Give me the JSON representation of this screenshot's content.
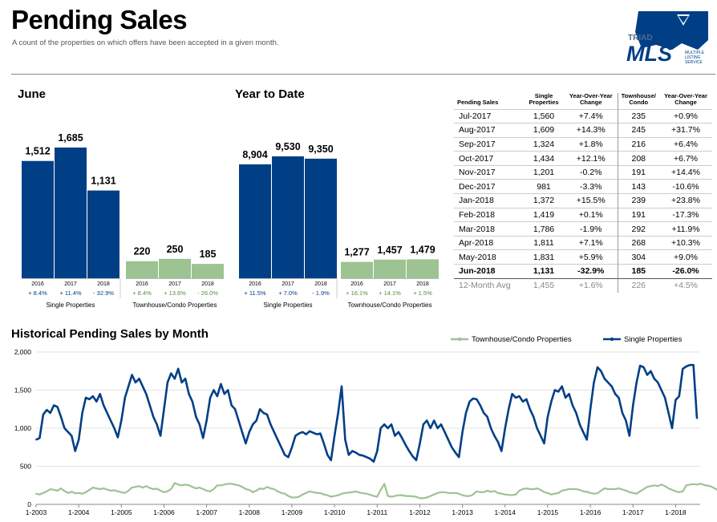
{
  "header": {
    "title": "Pending Sales",
    "subtitle": "A count of the properties on which offers have been accepted in a given month."
  },
  "logo": {
    "line1": "TRIAD",
    "line2": "MLS",
    "line3": "MULTIPLE",
    "line4": "LISTING",
    "line5": "SERVICE"
  },
  "colors": {
    "single": "#003f86",
    "townhouse": "#9dc393",
    "pct": "#003f86",
    "pct_green": "#4e8f3c"
  },
  "chart_data": [
    {
      "type": "bar",
      "title": "June",
      "groups": [
        {
          "name": "Single Properties",
          "categories": [
            "2016",
            "2017",
            "2018"
          ],
          "values": [
            1512,
            1685,
            1131
          ],
          "value_labels": [
            "1,512",
            "1,685",
            "1,131"
          ],
          "changes": [
            "+ 8.4%",
            "+ 11.4%",
            "- 32.9%"
          ]
        },
        {
          "name": "Townhouse/Condo Properties",
          "categories": [
            "2016",
            "2017",
            "2018"
          ],
          "values": [
            220,
            250,
            185
          ],
          "value_labels": [
            "220",
            "250",
            "185"
          ],
          "changes": [
            "+ 8.4%",
            "+ 13.6%",
            "- 26.0%"
          ]
        }
      ]
    },
    {
      "type": "bar",
      "title": "Year to Date",
      "groups": [
        {
          "name": "Single Properties",
          "categories": [
            "2016",
            "2017",
            "2018"
          ],
          "values": [
            8904,
            9530,
            9350
          ],
          "value_labels": [
            "8,904",
            "9,530",
            "9,350"
          ],
          "changes": [
            "+ 11.5%",
            "+ 7.0%",
            "- 1.9%"
          ]
        },
        {
          "name": "Townhouse/Condo Properties",
          "categories": [
            "2016",
            "2017",
            "2018"
          ],
          "values": [
            1277,
            1457,
            1479
          ],
          "value_labels": [
            "1,277",
            "1,457",
            "1,479"
          ],
          "changes": [
            "+ 16.1%",
            "+ 14.1%",
            "+ 1.5%"
          ]
        }
      ]
    },
    {
      "type": "table",
      "headers": [
        "Pending Sales",
        "Single Properties",
        "Year-Over-Year Change",
        "Townhouse/ Condo",
        "Year-Over-Year Change"
      ],
      "rows": [
        [
          "Jul-2017",
          "1,560",
          "+7.4%",
          "235",
          "+0.9%"
        ],
        [
          "Aug-2017",
          "1,609",
          "+14.3%",
          "245",
          "+31.7%"
        ],
        [
          "Sep-2017",
          "1,324",
          "+1.8%",
          "216",
          "+6.4%"
        ],
        [
          "Oct-2017",
          "1,434",
          "+12.1%",
          "208",
          "+6.7%"
        ],
        [
          "Nov-2017",
          "1,201",
          "-0.2%",
          "191",
          "+14.4%"
        ],
        [
          "Dec-2017",
          "981",
          "-3.3%",
          "143",
          "-10.6%"
        ],
        [
          "Jan-2018",
          "1,372",
          "+15.5%",
          "239",
          "+23.8%"
        ],
        [
          "Feb-2018",
          "1,419",
          "+0.1%",
          "191",
          "-17.3%"
        ],
        [
          "Mar-2018",
          "1,786",
          "-1.9%",
          "292",
          "+11.9%"
        ],
        [
          "Apr-2018",
          "1,811",
          "+7.1%",
          "268",
          "+10.3%"
        ],
        [
          "May-2018",
          "1,831",
          "+5.9%",
          "304",
          "+9.0%"
        ],
        [
          "Jun-2018",
          "1,131",
          "-32.9%",
          "185",
          "-26.0%"
        ]
      ],
      "avg_row": [
        "12-Month Avg",
        "1,455",
        "+1.6%",
        "226",
        "+4.5%"
      ]
    },
    {
      "type": "line",
      "title": "Historical Pending Sales by Month",
      "ylim": [
        0,
        2000
      ],
      "yticks": [
        "0",
        "500",
        "1,000",
        "1,500",
        "2,000"
      ],
      "xticks": [
        "1-2003",
        "1-2004",
        "1-2005",
        "1-2006",
        "1-2007",
        "1-2008",
        "1-2009",
        "1-2010",
        "1-2011",
        "1-2012",
        "1-2013",
        "1-2014",
        "1-2015",
        "1-2016",
        "1-2017",
        "1-2018"
      ],
      "x_start": "2003-01",
      "series": [
        {
          "name": "Townhouse/Condo Properties",
          "values": [
            140,
            130,
            150,
            170,
            200,
            190,
            180,
            210,
            175,
            150,
            165,
            145,
            150,
            140,
            160,
            190,
            220,
            210,
            200,
            210,
            195,
            180,
            185,
            170,
            160,
            150,
            180,
            220,
            230,
            240,
            220,
            240,
            215,
            200,
            205,
            180,
            160,
            170,
            200,
            280,
            260,
            250,
            260,
            250,
            230,
            210,
            220,
            200,
            180,
            170,
            200,
            250,
            250,
            260,
            270,
            270,
            260,
            250,
            230,
            200,
            190,
            160,
            180,
            210,
            200,
            230,
            210,
            200,
            170,
            150,
            140,
            110,
            90,
            90,
            100,
            130,
            150,
            170,
            160,
            150,
            150,
            130,
            120,
            100,
            110,
            120,
            140,
            150,
            155,
            160,
            170,
            155,
            145,
            140,
            125,
            110,
            100,
            190,
            270,
            110,
            100,
            110,
            120,
            120,
            110,
            110,
            105,
            100,
            80,
            80,
            90,
            110,
            130,
            150,
            160,
            160,
            150,
            150,
            150,
            140,
            120,
            110,
            110,
            130,
            170,
            160,
            160,
            180,
            165,
            175,
            150,
            140,
            130,
            125,
            120,
            130,
            180,
            200,
            210,
            200,
            200,
            210,
            190,
            160,
            150,
            130,
            140,
            150,
            180,
            190,
            200,
            200,
            200,
            190,
            170,
            165,
            150,
            140,
            145,
            180,
            210,
            200,
            200,
            200,
            210,
            195,
            180,
            160,
            150,
            140,
            170,
            200,
            230,
            240,
            250,
            240,
            260,
            240,
            210,
            190,
            170,
            160,
            170,
            250,
            260,
            265,
            260,
            270,
            255,
            245,
            235,
            210,
            180,
            160,
            190,
            240,
            290,
            270,
            300,
            250,
            180
          ]
        },
        {
          "name": "Single Properties",
          "values": [
            850,
            870,
            1180,
            1240,
            1200,
            1300,
            1280,
            1150,
            1000,
            950,
            900,
            700,
            850,
            1200,
            1400,
            1380,
            1420,
            1350,
            1450,
            1300,
            1200,
            1100,
            1000,
            880,
            1100,
            1400,
            1550,
            1700,
            1600,
            1650,
            1550,
            1450,
            1300,
            1150,
            1050,
            900,
            1250,
            1600,
            1720,
            1650,
            1780,
            1600,
            1650,
            1450,
            1350,
            1150,
            1050,
            870,
            1100,
            1400,
            1500,
            1420,
            1580,
            1450,
            1500,
            1300,
            1250,
            1100,
            950,
            800,
            950,
            1050,
            1100,
            1250,
            1200,
            1180,
            1050,
            950,
            850,
            750,
            650,
            620,
            750,
            900,
            930,
            950,
            920,
            960,
            940,
            920,
            930,
            800,
            650,
            580,
            900,
            1200,
            1550,
            850,
            650,
            700,
            680,
            650,
            640,
            620,
            600,
            560,
            700,
            1000,
            1050,
            1000,
            1050,
            900,
            950,
            870,
            780,
            700,
            630,
            580,
            800,
            1050,
            1100,
            1000,
            1100,
            1000,
            1050,
            950,
            850,
            750,
            680,
            620,
            950,
            1200,
            1350,
            1390,
            1380,
            1300,
            1200,
            1150,
            1000,
            900,
            820,
            700,
            1000,
            1250,
            1450,
            1400,
            1420,
            1350,
            1380,
            1250,
            1150,
            1000,
            900,
            800,
            1150,
            1350,
            1500,
            1480,
            1550,
            1400,
            1450,
            1300,
            1200,
            1050,
            950,
            850,
            1250,
            1600,
            1800,
            1750,
            1650,
            1600,
            1550,
            1450,
            1400,
            1200,
            1100,
            900,
            1300,
            1600,
            1820,
            1800,
            1700,
            1750,
            1650,
            1600,
            1500,
            1400,
            1200,
            1000,
            1370,
            1420,
            1780,
            1810,
            1830,
            1830,
            1130
          ]
        }
      ]
    }
  ]
}
